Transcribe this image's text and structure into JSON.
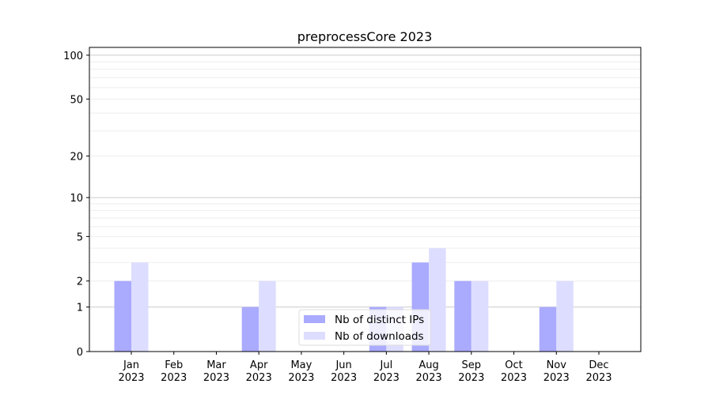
{
  "chart_data": {
    "type": "bar",
    "title": "preprocessCore 2023",
    "xlabel": "",
    "ylabel": "",
    "yscale": "log(1+y)",
    "ylim": [
      0,
      113
    ],
    "yticks": [
      0,
      1,
      2,
      5,
      10,
      20,
      50,
      100
    ],
    "grid": true,
    "legend_position": "lower-center",
    "categories": [
      "Jan\n2023",
      "Feb\n2023",
      "Mar\n2023",
      "Apr\n2023",
      "May\n2023",
      "Jun\n2023",
      "Jul\n2023",
      "Aug\n2023",
      "Sep\n2023",
      "Oct\n2023",
      "Nov\n2023",
      "Dec\n2023"
    ],
    "series": [
      {
        "name": "Nb of distinct IPs",
        "color": "#aaaaff",
        "values": [
          2,
          0,
          0,
          1,
          0,
          0,
          1,
          3,
          2,
          0,
          1,
          0
        ]
      },
      {
        "name": "Nb of downloads",
        "color": "#ddddff",
        "values": [
          3,
          0,
          0,
          2,
          0,
          0,
          1,
          4,
          2,
          0,
          2,
          0
        ]
      }
    ]
  }
}
